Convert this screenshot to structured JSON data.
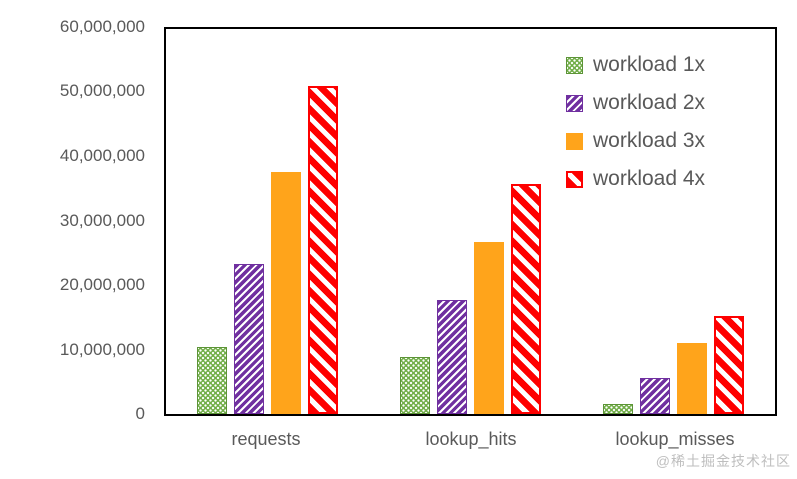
{
  "chart_data": {
    "type": "bar",
    "title": "",
    "categories": [
      "requests",
      "lookup_hits",
      "lookup_misses"
    ],
    "series": [
      {
        "name": "workload 1x",
        "color": "#70AD47",
        "pattern": "dots",
        "values": [
          10400000,
          8900000,
          1500000
        ]
      },
      {
        "name": "workload 2x",
        "color": "#7030A0",
        "pattern": "diag-up-thin",
        "values": [
          23400000,
          17800000,
          5600000
        ]
      },
      {
        "name": "workload 3x",
        "color": "#FFA41B",
        "pattern": "solid",
        "values": [
          37700000,
          26800000,
          11000000
        ]
      },
      {
        "name": "workload 4x",
        "color": "#FE0000",
        "pattern": "diag-down-thick",
        "values": [
          51100000,
          35800000,
          15300000
        ]
      }
    ],
    "xlabel": "",
    "ylabel": "",
    "ylim": [
      0,
      60000000
    ],
    "ytick_interval": 10000000,
    "ytick_labels": [
      "0",
      "10,000,000",
      "20,000,000",
      "30,000,000",
      "40,000,000",
      "50,000,000",
      "60,000,000"
    ],
    "grid": false,
    "legend_position": "top-right-inside"
  },
  "colors": {
    "axis_border": "#000000",
    "label_text": "#595959",
    "background": "#ffffff"
  },
  "watermark": "@稀土掘金技术社区"
}
